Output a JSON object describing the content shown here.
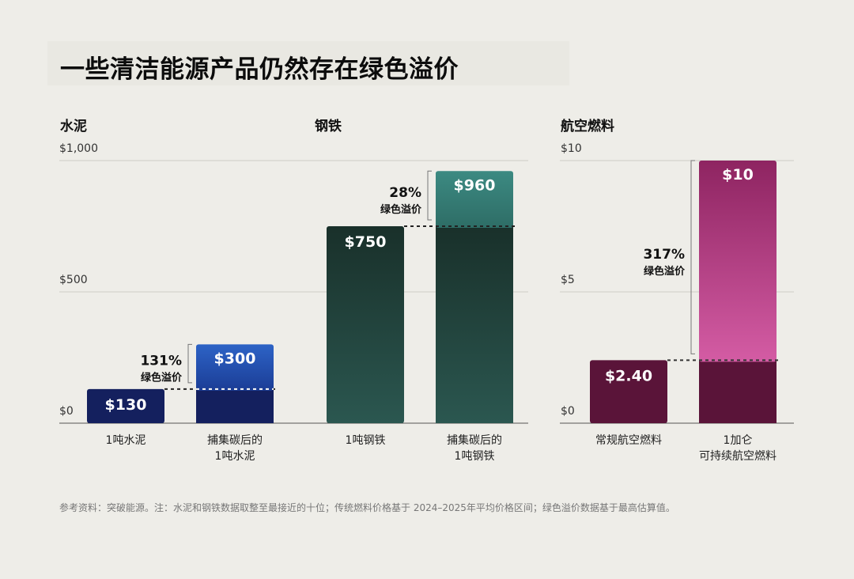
{
  "title": "一些清洁能源产品仍然存在绿色溢价",
  "footnote": "参考资料：突破能源。注：水泥和钢铁数据取整至最接近的十位；传统燃料价格基于 2024–2025年平均价格区间；绿色溢价数据基于最高估算值。",
  "premium_label": "绿色溢价",
  "colors": {
    "background": "#eeede8",
    "cement_conventional": "#14205e",
    "cement_green_top": "#2d63c6",
    "cement_green_bottom": "#1b3d96",
    "steel_top": "#19302a",
    "steel_bottom": "#2b5750",
    "steel_green_top": "#3c8a82",
    "steel_green_bottom": "#2e6d66",
    "saf_conventional": "#5a1439",
    "saf_green_top": "#8e2461",
    "saf_green_bottom": "#d45ca4"
  },
  "chart_data": [
    {
      "type": "bar",
      "panel_title": "水泥",
      "categories": [
        "1吨水泥",
        "捕集碳后的\n1吨水泥"
      ],
      "values": [
        130,
        300
      ],
      "value_labels": [
        "$130",
        "$300"
      ],
      "ylim": [
        0,
        1000
      ],
      "y_ticks": [
        "$0",
        "$500",
        "$1,000"
      ],
      "y_tick_values": [
        0,
        500,
        1000
      ],
      "green_premium": "131%"
    },
    {
      "type": "bar",
      "panel_title": "钢铁",
      "categories": [
        "1吨钢铁",
        "捕集碳后的\n1吨钢铁"
      ],
      "values": [
        750,
        960
      ],
      "value_labels": [
        "$750",
        "$960"
      ],
      "ylim": [
        0,
        1000
      ],
      "green_premium": "28%"
    },
    {
      "type": "bar",
      "panel_title": "航空燃料",
      "categories": [
        "常规航空燃料",
        "1加仑\n可持续航空燃料"
      ],
      "values": [
        2.4,
        10
      ],
      "value_labels": [
        "$2.40",
        "$10"
      ],
      "ylim": [
        0,
        10
      ],
      "y_ticks": [
        "$0",
        "$5",
        "$10"
      ],
      "y_tick_values": [
        0,
        5,
        10
      ],
      "green_premium": "317%"
    }
  ]
}
